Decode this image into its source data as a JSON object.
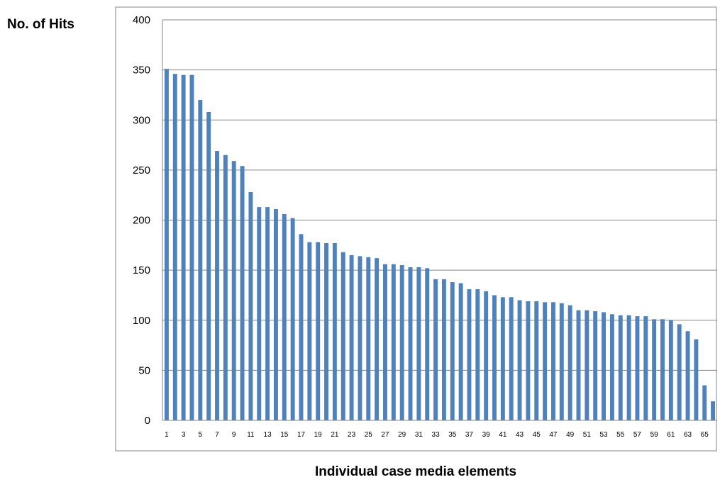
{
  "chart_data": {
    "type": "bar",
    "title": "",
    "xlabel": "Individual case media elements",
    "ylabel": "No. of Hits",
    "ylim": [
      0,
      400
    ],
    "yticks": [
      0,
      50,
      100,
      150,
      200,
      250,
      300,
      350,
      400
    ],
    "grid": true,
    "legend": "none",
    "bar_color": "#4F81BD",
    "gridline_color": "#868686",
    "x_tick_labels_shown": [
      "1",
      "3",
      "5",
      "7",
      "9",
      "11",
      "13",
      "15",
      "17",
      "19",
      "21",
      "23",
      "25",
      "27",
      "29",
      "31",
      "33",
      "35",
      "37",
      "39",
      "41",
      "43",
      "45",
      "47",
      "49",
      "51",
      "53",
      "55",
      "57",
      "59",
      "61",
      "63",
      "65"
    ],
    "categories": [
      "1",
      "2",
      "3",
      "4",
      "5",
      "6",
      "7",
      "8",
      "9",
      "10",
      "11",
      "12",
      "13",
      "14",
      "15",
      "16",
      "17",
      "18",
      "19",
      "20",
      "21",
      "22",
      "23",
      "24",
      "25",
      "26",
      "27",
      "28",
      "29",
      "30",
      "31",
      "32",
      "33",
      "34",
      "35",
      "36",
      "37",
      "38",
      "39",
      "40",
      "41",
      "42",
      "43",
      "44",
      "45",
      "46",
      "47",
      "48",
      "49",
      "50",
      "51",
      "52",
      "53",
      "54",
      "55",
      "56",
      "57",
      "58",
      "59",
      "60",
      "61",
      "62",
      "63",
      "64",
      "65",
      "66"
    ],
    "values": [
      351,
      346,
      345,
      345,
      320,
      308,
      269,
      265,
      259,
      254,
      228,
      213,
      213,
      211,
      206,
      202,
      186,
      178,
      178,
      177,
      177,
      168,
      165,
      164,
      163,
      162,
      156,
      156,
      155,
      153,
      153,
      152,
      141,
      141,
      138,
      137,
      131,
      131,
      129,
      125,
      123,
      123,
      120,
      119,
      119,
      118,
      118,
      117,
      115,
      110,
      110,
      109,
      108,
      106,
      105,
      105,
      104,
      104,
      101,
      101,
      100,
      96,
      89,
      81,
      35,
      19
    ]
  }
}
